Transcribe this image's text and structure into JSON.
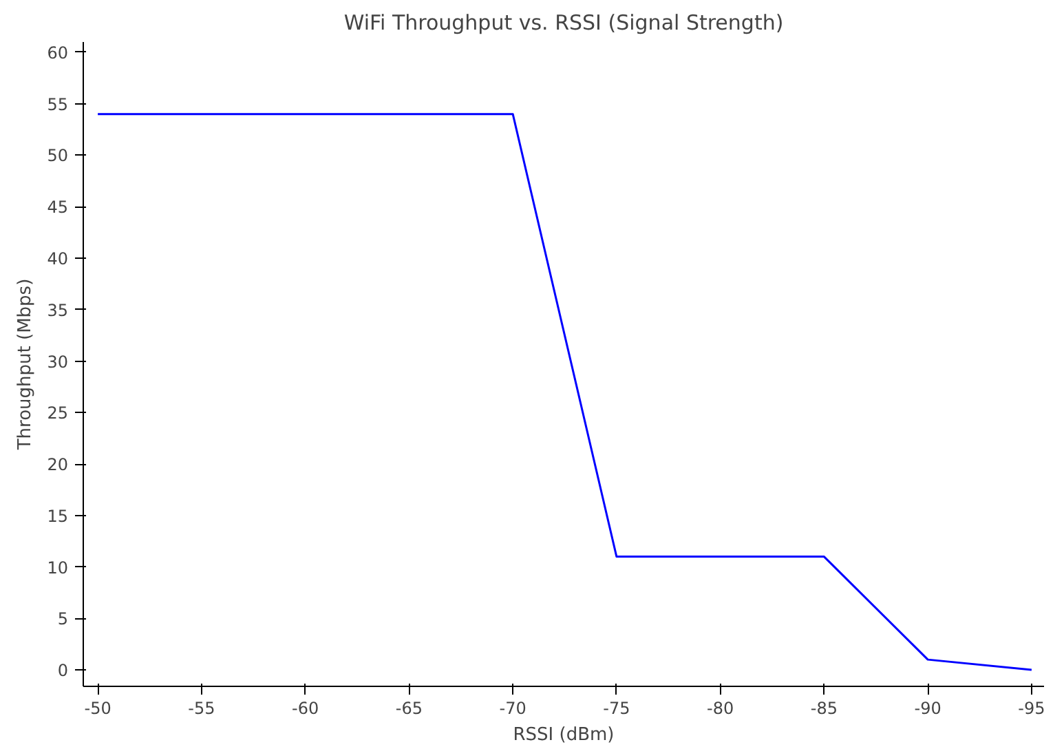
{
  "chart_data": {
    "type": "line",
    "title": "WiFi Throughput vs. RSSI (Signal Strength)",
    "xlabel": "RSSI (dBm)",
    "ylabel": "Throughput (Mbps)",
    "x": [
      -50,
      -70,
      -75,
      -85,
      -90,
      -95
    ],
    "series": [
      {
        "color": "#0000ff",
        "values": [
          54,
          54,
          11,
          11,
          1,
          0
        ]
      }
    ],
    "xlim": [
      -49.3,
      -95.6
    ],
    "xticks": [
      -50,
      -55,
      -60,
      -65,
      -70,
      -75,
      -80,
      -85,
      -90,
      -95
    ],
    "ylim": [
      -1.6,
      61
    ],
    "yticks": [
      0,
      5,
      10,
      15,
      20,
      25,
      30,
      35,
      40,
      45,
      50,
      55,
      60
    ],
    "grid": false,
    "marker": "none",
    "line_style": "solid"
  }
}
